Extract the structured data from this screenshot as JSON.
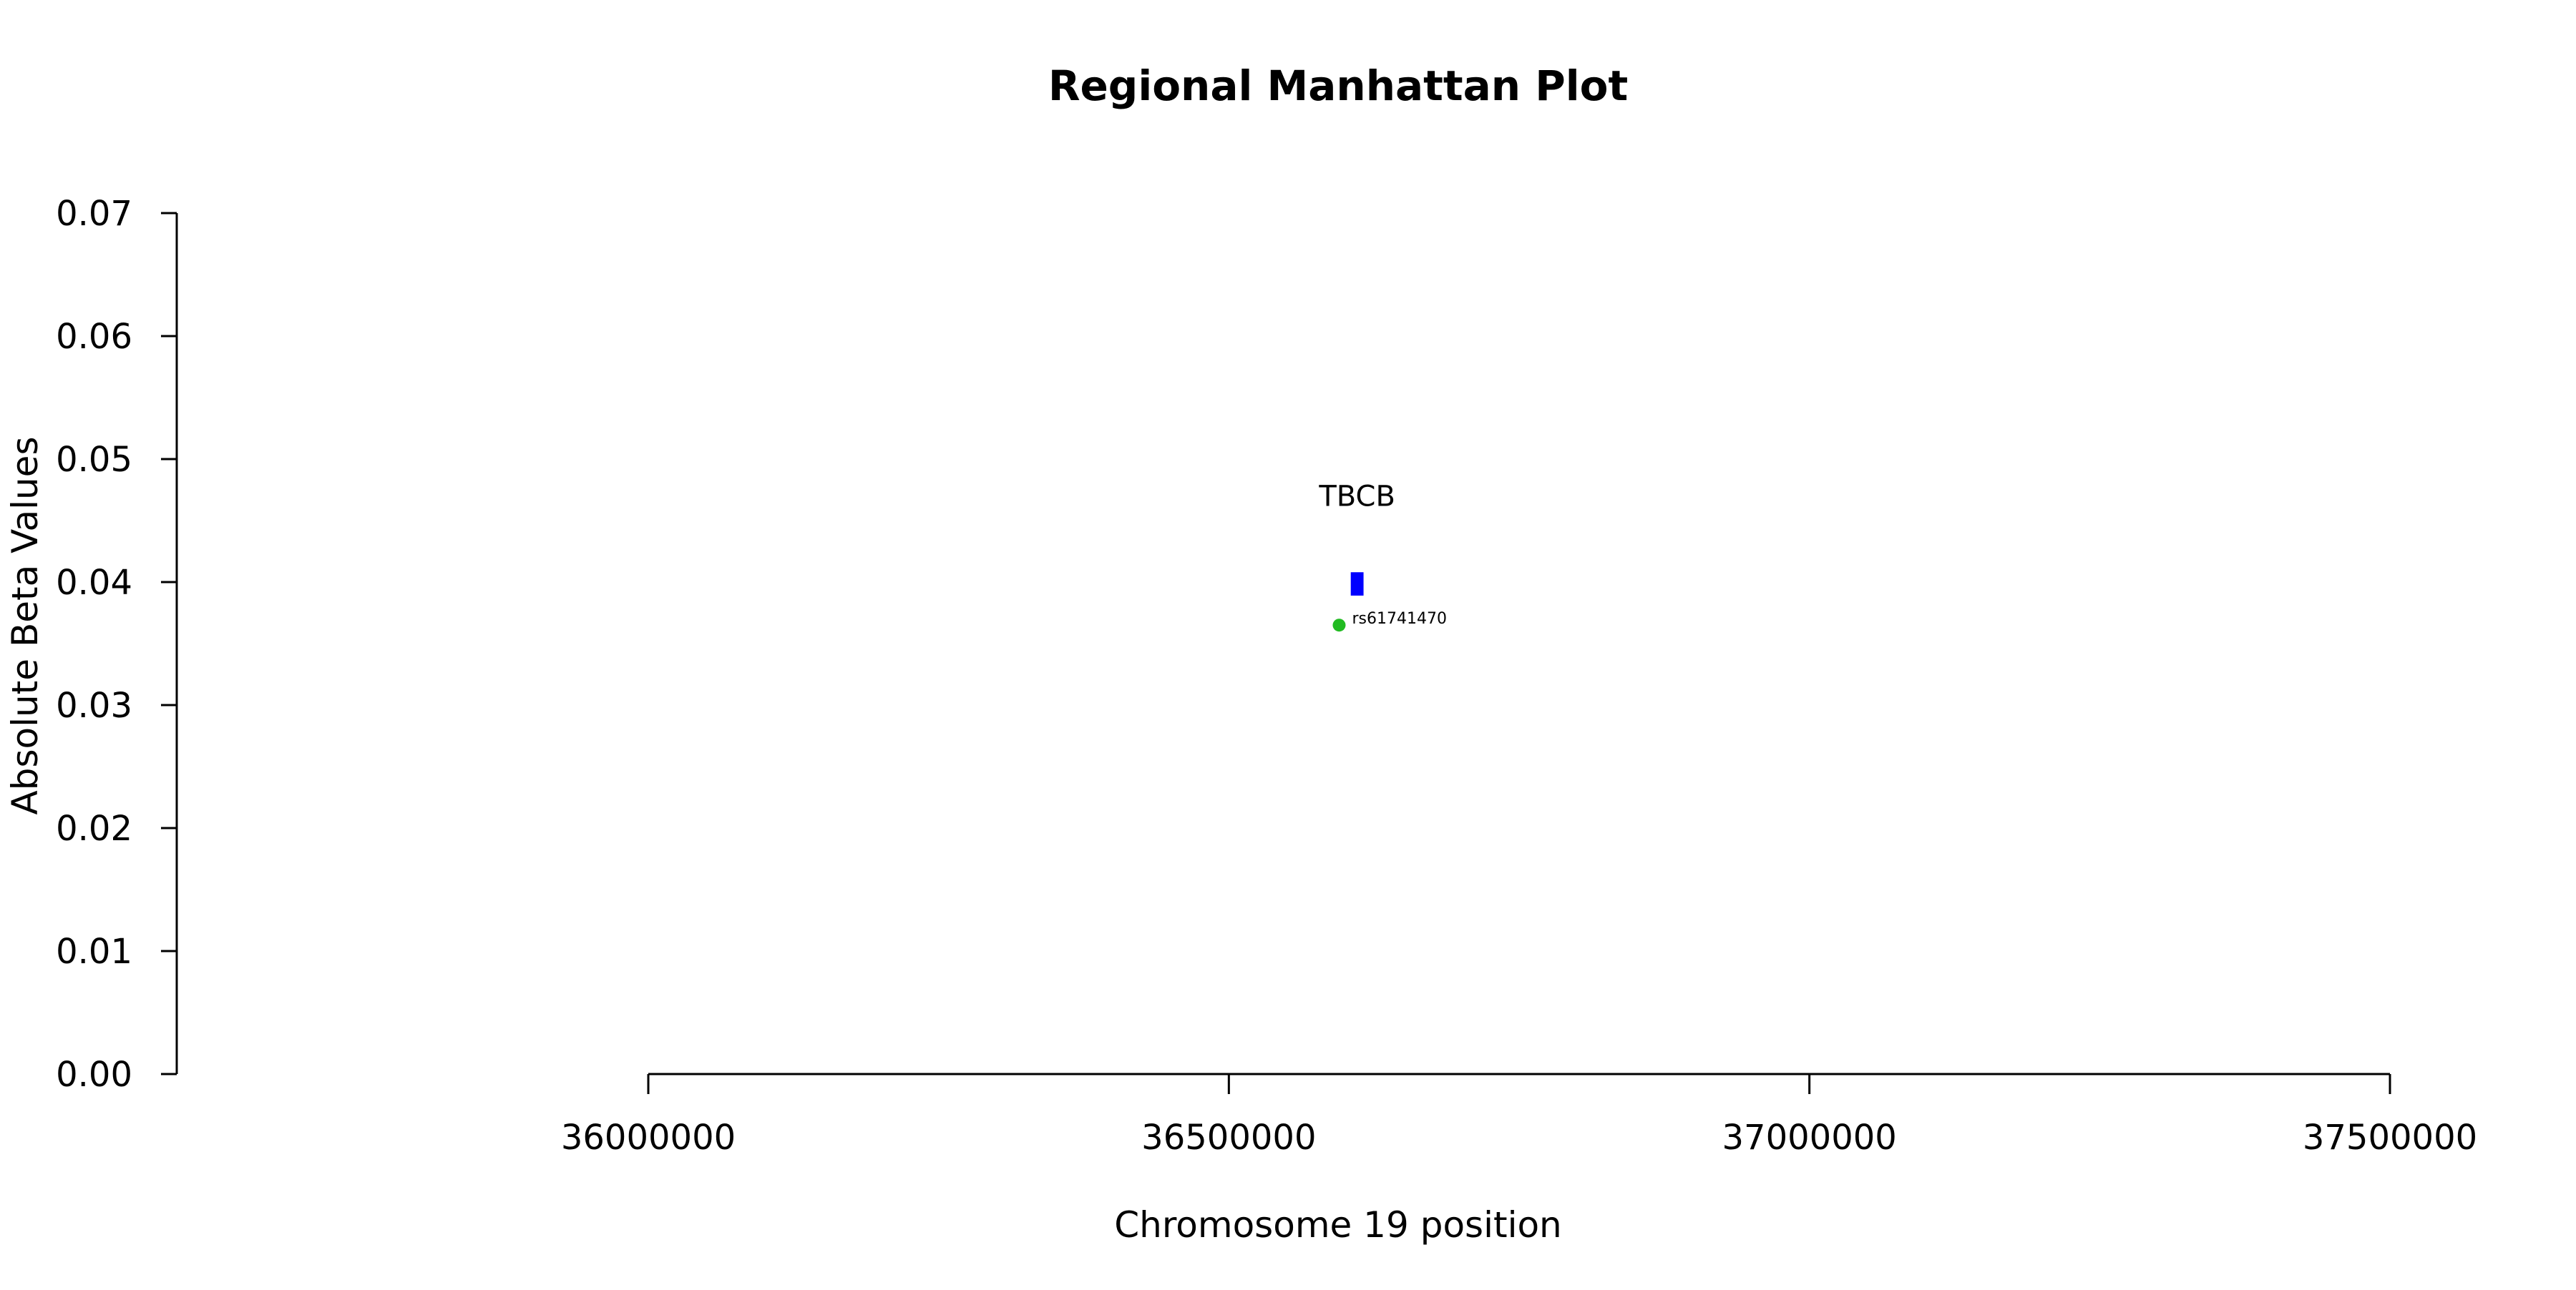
{
  "chart_data": {
    "type": "scatter",
    "title": "Regional Manhattan Plot",
    "xlabel": "Chromosome 19 position",
    "ylabel": "Absolute Beta Values",
    "xlim": [
      35600000,
      37500000
    ],
    "ylim": [
      0,
      0.07
    ],
    "x_ticks": [
      36000000,
      36500000,
      37000000,
      37500000
    ],
    "x_tick_labels": [
      "36000000",
      "36500000",
      "37000000",
      "37500000"
    ],
    "y_ticks": [
      0.0,
      0.01,
      0.02,
      0.03,
      0.04,
      0.05,
      0.06,
      0.07
    ],
    "y_tick_labels": [
      "0.00",
      "0.01",
      "0.02",
      "0.03",
      "0.04",
      "0.05",
      "0.06",
      "0.07"
    ],
    "grid": false,
    "genes": [
      {
        "label": "TBCB",
        "start": 36605000,
        "end": 36616000,
        "y_low": 0.0389,
        "y_high": 0.0408,
        "label_y": 0.047,
        "color": "#0000ff"
      }
    ],
    "points": [
      {
        "label": "rs61741470",
        "x": 36595000,
        "y": 0.0365,
        "color": "#22bb22"
      }
    ]
  }
}
